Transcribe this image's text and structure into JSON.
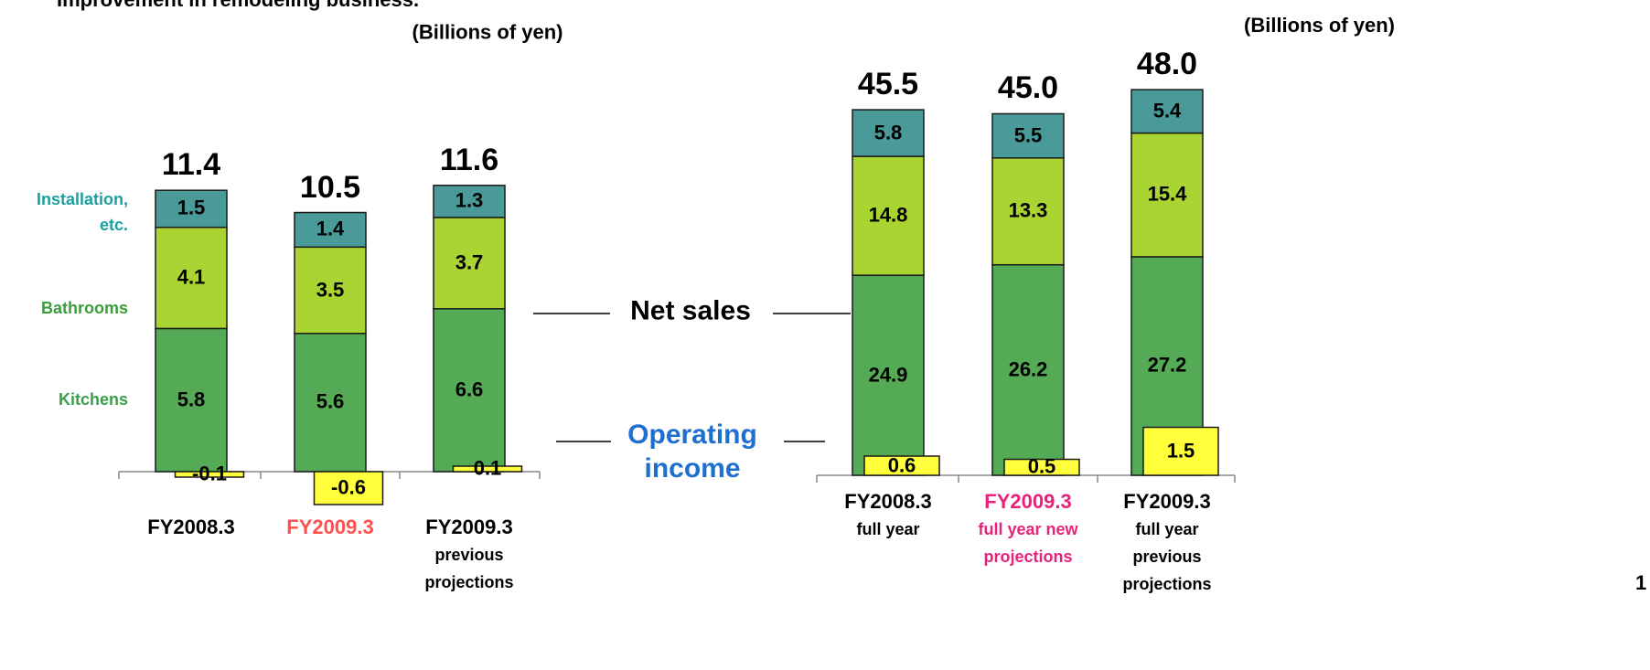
{
  "title": "Improvement in remodeling business.",
  "page_number": "1",
  "annotations": {
    "net_sales": "Net sales",
    "operating_income": "Operating\nincome"
  },
  "chart_data": [
    {
      "type": "bar",
      "stacked": true,
      "unit": "(Billions of yen)",
      "categories": [
        "FY2008.3",
        "FY2009.3",
        "FY2009.3\nprevious\nprojections"
      ],
      "category_colors": [
        "#000000",
        "#ff5050",
        "#000000"
      ],
      "series": [
        {
          "name": "Kitchens",
          "color": "#55aa55",
          "values": [
            5.8,
            5.6,
            6.6
          ]
        },
        {
          "name": "Bathrooms",
          "color": "#a9d431",
          "values": [
            4.1,
            3.5,
            3.7
          ]
        },
        {
          "name": "Installation,\netc.",
          "color": "#4a9a9a",
          "values": [
            1.5,
            1.4,
            1.3
          ]
        }
      ],
      "totals": [
        11.4,
        10.5,
        11.6
      ],
      "operating_income": {
        "color": "#ffff3c",
        "values": [
          -0.1,
          -0.6,
          0.1
        ]
      }
    },
    {
      "type": "bar",
      "stacked": true,
      "unit": "(Billions of yen)",
      "categories": [
        "FY2008.3\nfull year",
        "FY2009.3\nfull year new\nprojections",
        "FY2009.3\nfull year\nprevious\nprojections"
      ],
      "category_colors": [
        "#000000",
        "#e8217a",
        "#000000"
      ],
      "series": [
        {
          "color": "#55aa55",
          "values": [
            24.9,
            26.2,
            27.2
          ]
        },
        {
          "color": "#a9d431",
          "values": [
            14.8,
            13.3,
            15.4
          ]
        },
        {
          "color": "#4a9a9a",
          "values": [
            5.8,
            5.5,
            5.4
          ]
        }
      ],
      "totals": [
        45.5,
        45.0,
        48.0
      ],
      "totals_labels": [
        "45.5",
        "45.0",
        "48.0"
      ],
      "operating_income": {
        "color": "#ffff3c",
        "values": [
          0.6,
          0.5,
          1.5
        ]
      }
    }
  ]
}
